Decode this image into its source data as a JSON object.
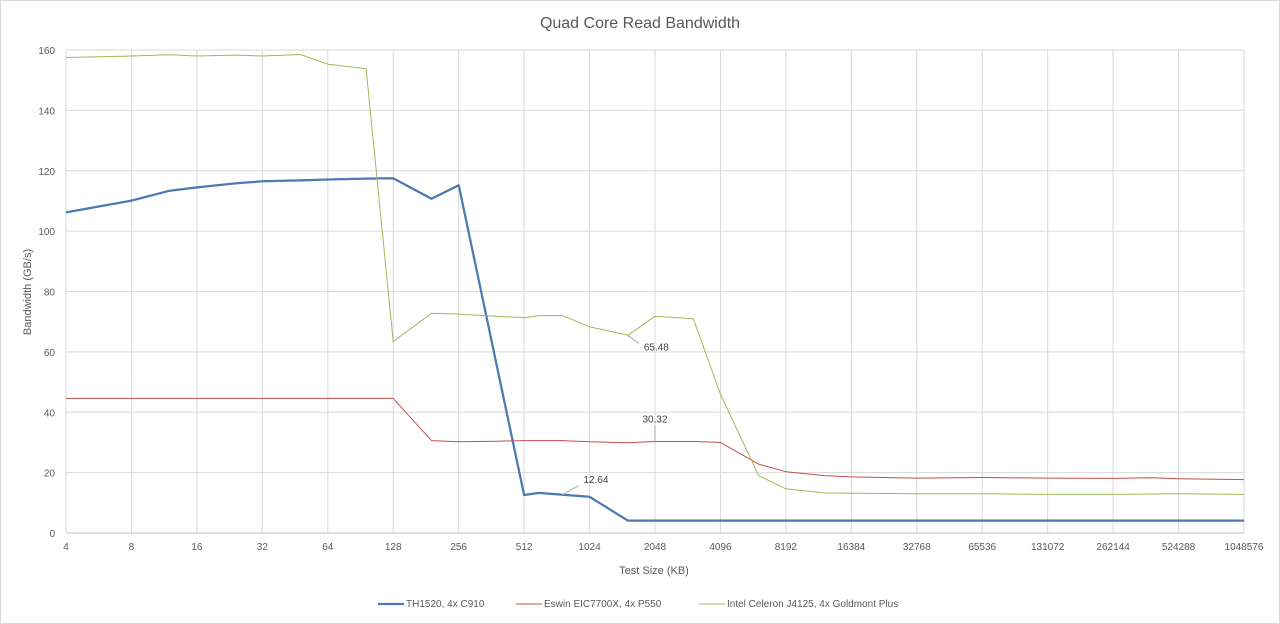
{
  "chart_data": {
    "type": "line",
    "title": "Quad Core Read Bandwidth",
    "xlabel": "Test Size (KB)",
    "ylabel": "Bandwidth (GB/s)",
    "x_scale": "log2",
    "ylim": [
      0,
      160
    ],
    "yticks": [
      0,
      20,
      40,
      60,
      80,
      100,
      120,
      140,
      160
    ],
    "xticks": [
      "4",
      "8",
      "16",
      "32",
      "64",
      "128",
      "256",
      "512",
      "1024",
      "2048",
      "4096",
      "8192",
      "16384",
      "32768",
      "65536",
      "131072",
      "262144",
      "524288",
      "1048576"
    ],
    "grid": true,
    "legend_position": "bottom",
    "series": [
      {
        "name": "TH1520, 4x C910",
        "color": "#4a7ab0",
        "x": [
          4,
          8,
          12,
          16,
          24,
          32,
          48,
          64,
          96,
          128,
          192,
          256,
          512,
          600,
          768,
          1024,
          1536,
          2048,
          3072,
          4096,
          8192,
          16384,
          32768,
          65536,
          131072,
          262144,
          524288,
          1048576
        ],
        "y": [
          106.2,
          110.1,
          113.4,
          114.5,
          115.8,
          116.5,
          116.8,
          117.1,
          117.4,
          117.5,
          110.7,
          115.2,
          12.6,
          13.3,
          12.64,
          12.0,
          4.1,
          4.1,
          4.1,
          4.1,
          4.1,
          4.1,
          4.1,
          4.1,
          4.1,
          4.1,
          4.1,
          4.1
        ]
      },
      {
        "name": "Eswin EIC7700X, 4x P550",
        "color": "#c0504d",
        "x": [
          4,
          8,
          16,
          32,
          64,
          128,
          192,
          256,
          384,
          512,
          768,
          1024,
          1536,
          2048,
          3072,
          4096,
          6144,
          8192,
          12288,
          16384,
          32768,
          65536,
          131072,
          262144,
          393216,
          524288,
          1048576
        ],
        "y": [
          44.6,
          44.6,
          44.6,
          44.6,
          44.6,
          44.6,
          30.6,
          30.2,
          30.4,
          30.6,
          30.6,
          30.2,
          29.9,
          30.32,
          30.3,
          30.0,
          22.8,
          20.3,
          19.0,
          18.6,
          18.2,
          18.4,
          18.2,
          18.1,
          18.3,
          18.0,
          17.7
        ]
      },
      {
        "name": "Intel Celeron J4125, 4x Goldmont Plus",
        "color": "#9bbb59",
        "x": [
          4,
          8,
          12,
          16,
          24,
          32,
          48,
          64,
          96,
          128,
          192,
          256,
          512,
          600,
          768,
          1024,
          1536,
          2048,
          3072,
          4096,
          6144,
          8192,
          12288,
          16384,
          32768,
          65536,
          131072,
          262144,
          524288,
          1048576
        ],
        "y": [
          157.5,
          158.0,
          158.4,
          158.0,
          158.3,
          158.0,
          158.5,
          155.3,
          153.8,
          63.4,
          72.8,
          72.5,
          71.3,
          72.0,
          72.0,
          68.3,
          65.48,
          71.8,
          71.0,
          46.0,
          19.0,
          14.6,
          13.3,
          13.2,
          13.0,
          13.0,
          12.8,
          12.8,
          13.0,
          12.8
        ]
      }
    ],
    "annotations": [
      {
        "series": 0,
        "x": 768,
        "y": 12.64,
        "text": "12.64"
      },
      {
        "series": 1,
        "x": 2048,
        "y": 30.32,
        "text": "30.32"
      },
      {
        "series": 2,
        "x": 1536,
        "y": 65.48,
        "text": "65.48"
      }
    ]
  }
}
